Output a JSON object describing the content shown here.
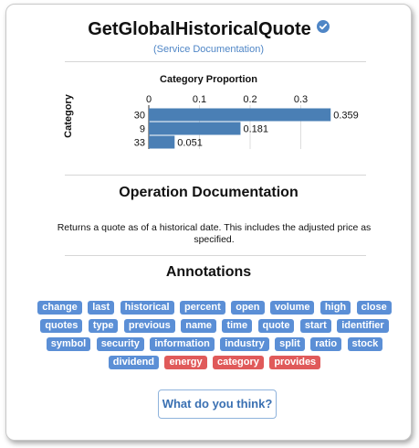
{
  "header": {
    "title": "GetGlobalHistoricalQuote",
    "service_link": "(Service Documentation)"
  },
  "chart_data": {
    "type": "bar",
    "orientation": "horizontal",
    "title": "Category Proportion",
    "ylabel": "Category",
    "xlabel": "",
    "categories": [
      "30",
      "9",
      "33"
    ],
    "values": [
      0.359,
      0.181,
      0.051
    ],
    "value_labels": [
      "0.359",
      "0.181",
      "0.051"
    ],
    "x_ticks": [
      "0",
      "0.1",
      "0.2",
      "0.3"
    ],
    "xlim": [
      0,
      0.36
    ],
    "grid": true,
    "color": "#4a7fb5"
  },
  "operation": {
    "heading": "Operation Documentation",
    "description": "Returns a quote as of a historical date. This includes the adjusted price as specified."
  },
  "annotations": {
    "heading": "Annotations",
    "tags": [
      {
        "label": "change",
        "color": "blue"
      },
      {
        "label": "last",
        "color": "blue"
      },
      {
        "label": "historical",
        "color": "blue"
      },
      {
        "label": "percent",
        "color": "blue"
      },
      {
        "label": "open",
        "color": "blue"
      },
      {
        "label": "volume",
        "color": "blue"
      },
      {
        "label": "high",
        "color": "blue"
      },
      {
        "label": "close",
        "color": "blue"
      },
      {
        "label": "quotes",
        "color": "blue"
      },
      {
        "label": "type",
        "color": "blue"
      },
      {
        "label": "previous",
        "color": "blue"
      },
      {
        "label": "name",
        "color": "blue"
      },
      {
        "label": "time",
        "color": "blue"
      },
      {
        "label": "quote",
        "color": "blue"
      },
      {
        "label": "start",
        "color": "blue"
      },
      {
        "label": "identifier",
        "color": "blue"
      },
      {
        "label": "symbol",
        "color": "blue"
      },
      {
        "label": "security",
        "color": "blue"
      },
      {
        "label": "information",
        "color": "blue"
      },
      {
        "label": "industry",
        "color": "blue"
      },
      {
        "label": "split",
        "color": "blue"
      },
      {
        "label": "ratio",
        "color": "blue"
      },
      {
        "label": "stock",
        "color": "blue"
      },
      {
        "label": "dividend",
        "color": "blue"
      },
      {
        "label": "energy",
        "color": "red"
      },
      {
        "label": "category",
        "color": "red"
      },
      {
        "label": "provides",
        "color": "red"
      }
    ]
  },
  "feedback": {
    "label": "What do you think?"
  },
  "colors": {
    "tag_blue": "#5b8fd6",
    "tag_red": "#e05a5a",
    "link": "#4f86c6"
  }
}
